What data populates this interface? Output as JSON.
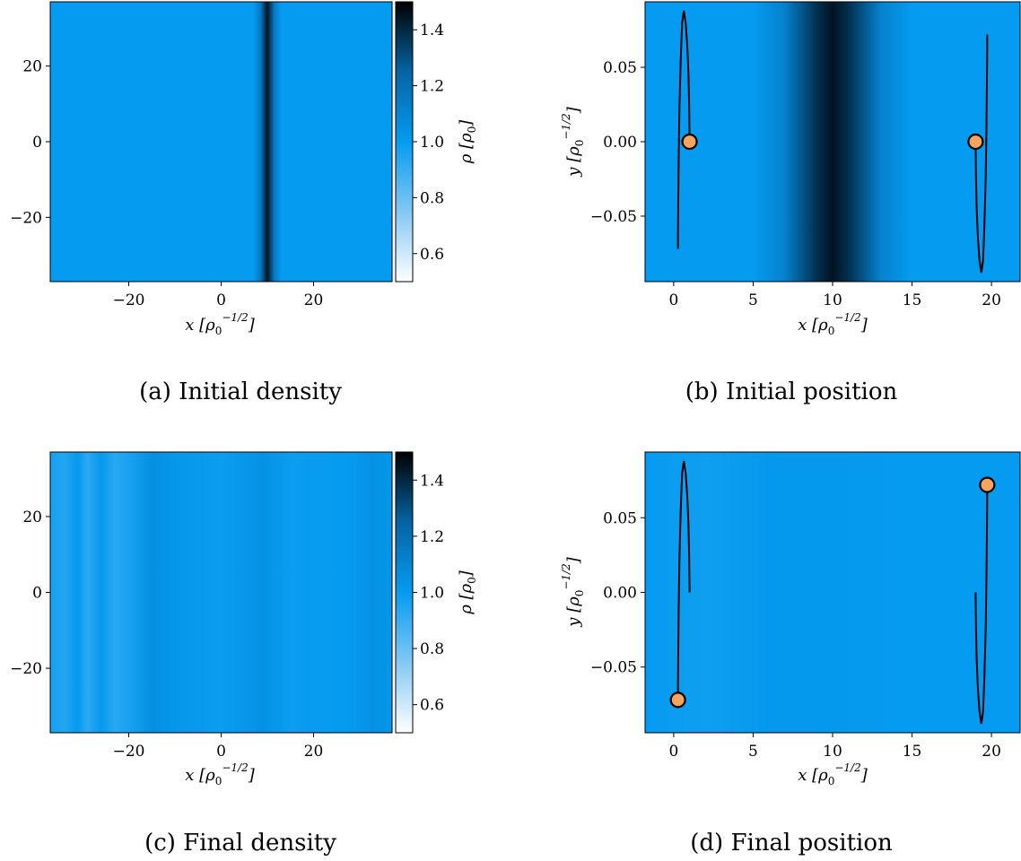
{
  "chart_data": [
    {
      "id": "a",
      "type": "heatmap",
      "caption": "(a) Initial density",
      "xlabel": "x [ρ0^−1/2]",
      "xlim": [
        -37,
        37
      ],
      "ylim": [
        -37,
        37
      ],
      "x_ticks": [
        -20,
        0,
        20
      ],
      "y_ticks": [
        20,
        0,
        -20
      ],
      "x_tick_labels": [
        "−20",
        "0",
        "20"
      ],
      "y_tick_labels": [
        "20",
        "0",
        "−20"
      ],
      "density_profile": [
        {
          "x": -37,
          "rho": 1.0
        },
        {
          "x": 7,
          "rho": 1.0
        },
        {
          "x": 8.5,
          "rho": 1.15
        },
        {
          "x": 10,
          "rho": 1.45
        },
        {
          "x": 11.5,
          "rho": 1.15
        },
        {
          "x": 13,
          "rho": 1.0
        },
        {
          "x": 37,
          "rho": 1.0
        }
      ],
      "colorbar": {
        "label": "ρ [ρ0]",
        "range": [
          0.5,
          1.5
        ],
        "ticks": [
          1.4,
          1.2,
          1.0,
          0.8,
          0.6
        ],
        "tick_labels": [
          "1.4",
          "1.2",
          "1.0",
          "0.8",
          "0.6"
        ]
      }
    },
    {
      "id": "b",
      "type": "line",
      "caption": "(b) Initial position",
      "xlabel": "x [ρ0^−1/2]",
      "ylabel": "y [ρ0^−1/2]",
      "xlim": [
        -1.8,
        21.8
      ],
      "ylim": [
        -0.094,
        0.094
      ],
      "x_ticks": [
        0,
        5,
        10,
        15,
        20
      ],
      "y_ticks": [
        0.05,
        0.0,
        -0.05
      ],
      "x_tick_labels": [
        "0",
        "5",
        "10",
        "15",
        "20"
      ],
      "y_tick_labels": [
        "0.05",
        "0.00",
        "−0.05"
      ],
      "density_profile": [
        {
          "x": -1.8,
          "rho": 1.0
        },
        {
          "x": 5,
          "rho": 1.0
        },
        {
          "x": 7,
          "rho": 1.12
        },
        {
          "x": 9,
          "rho": 1.38
        },
        {
          "x": 10,
          "rho": 1.45
        },
        {
          "x": 11,
          "rho": 1.38
        },
        {
          "x": 13,
          "rho": 1.12
        },
        {
          "x": 15,
          "rho": 1.0
        },
        {
          "x": 21.8,
          "rho": 1.0
        }
      ],
      "series": [
        {
          "x": [
            1.0,
            0.98,
            0.93,
            0.85,
            0.75,
            0.64,
            0.53,
            0.44,
            0.37,
            0.32,
            0.29,
            0.27,
            0.27
          ],
          "y": [
            0.0,
            0.022,
            0.045,
            0.066,
            0.08,
            0.088,
            0.08,
            0.055,
            0.025,
            -0.008,
            -0.04,
            -0.062,
            -0.072
          ]
        },
        {
          "x": [
            19.0,
            19.02,
            19.07,
            19.15,
            19.25,
            19.36,
            19.47,
            19.56,
            19.63,
            19.68,
            19.71,
            19.73,
            19.73
          ],
          "y": [
            0.0,
            -0.022,
            -0.045,
            -0.066,
            -0.08,
            -0.088,
            -0.08,
            -0.055,
            -0.025,
            0.008,
            0.04,
            0.062,
            0.072
          ]
        }
      ],
      "markers": [
        {
          "x": 1.0,
          "y": 0.0
        },
        {
          "x": 19.0,
          "y": 0.0
        }
      ],
      "marker_color": "#f4a460"
    },
    {
      "id": "c",
      "type": "heatmap",
      "caption": "(c) Final density",
      "xlabel": "x [ρ0^−1/2]",
      "xlim": [
        -37,
        37
      ],
      "ylim": [
        -37,
        37
      ],
      "x_ticks": [
        -20,
        0,
        20
      ],
      "y_ticks": [
        20,
        0,
        -20
      ],
      "x_tick_labels": [
        "−20",
        "0",
        "20"
      ],
      "y_tick_labels": [
        "20",
        "0",
        "−20"
      ],
      "density_profile": [
        {
          "x": -37,
          "rho": 0.97
        },
        {
          "x": -34,
          "rho": 0.94
        },
        {
          "x": -31,
          "rho": 1.01
        },
        {
          "x": -29,
          "rho": 0.92
        },
        {
          "x": -26,
          "rho": 1.01
        },
        {
          "x": -23,
          "rho": 0.93
        },
        {
          "x": -20,
          "rho": 0.96
        },
        {
          "x": -15,
          "rho": 1.05
        },
        {
          "x": -10,
          "rho": 1.02
        },
        {
          "x": 0,
          "rho": 0.99
        },
        {
          "x": 9,
          "rho": 1.04
        },
        {
          "x": 15,
          "rho": 0.99
        },
        {
          "x": 27,
          "rho": 1.0
        },
        {
          "x": 33,
          "rho": 1.04
        },
        {
          "x": 37,
          "rho": 1.02
        }
      ],
      "colorbar": {
        "label": "ρ [ρ0]",
        "range": [
          0.5,
          1.5
        ],
        "ticks": [
          1.4,
          1.2,
          1.0,
          0.8,
          0.6
        ],
        "tick_labels": [
          "1.4",
          "1.2",
          "1.0",
          "0.8",
          "0.6"
        ]
      }
    },
    {
      "id": "d",
      "type": "line",
      "caption": "(d) Final position",
      "xlabel": "x [ρ0^−1/2]",
      "ylabel": "y [ρ0^−1/2]",
      "xlim": [
        -1.8,
        21.8
      ],
      "ylim": [
        -0.094,
        0.094
      ],
      "x_ticks": [
        0,
        5,
        10,
        15,
        20
      ],
      "y_ticks": [
        0.05,
        0.0,
        -0.05
      ],
      "x_tick_labels": [
        "0",
        "5",
        "10",
        "15",
        "20"
      ],
      "y_tick_labels": [
        "0.05",
        "0.00",
        "−0.05"
      ],
      "density_profile": [
        {
          "x": -1.8,
          "rho": 1.0
        },
        {
          "x": 2,
          "rho": 0.98
        },
        {
          "x": 6,
          "rho": 1.01
        },
        {
          "x": 10,
          "rho": 1.01
        },
        {
          "x": 14,
          "rho": 1.0
        },
        {
          "x": 21.8,
          "rho": 1.0
        }
      ],
      "series": [
        {
          "x": [
            1.0,
            0.98,
            0.93,
            0.85,
            0.75,
            0.64,
            0.53,
            0.44,
            0.37,
            0.32,
            0.29,
            0.27,
            0.27
          ],
          "y": [
            0.0,
            0.022,
            0.045,
            0.066,
            0.08,
            0.088,
            0.08,
            0.055,
            0.025,
            -0.008,
            -0.04,
            -0.062,
            -0.072
          ]
        },
        {
          "x": [
            19.0,
            19.02,
            19.07,
            19.15,
            19.25,
            19.36,
            19.47,
            19.56,
            19.63,
            19.68,
            19.71,
            19.73,
            19.73
          ],
          "y": [
            0.0,
            -0.022,
            -0.045,
            -0.066,
            -0.08,
            -0.088,
            -0.08,
            -0.055,
            -0.025,
            0.008,
            0.04,
            0.062,
            0.072
          ]
        }
      ],
      "markers": [
        {
          "x": 0.27,
          "y": -0.072
        },
        {
          "x": 19.73,
          "y": 0.072
        }
      ],
      "marker_color": "#f4a460"
    }
  ]
}
